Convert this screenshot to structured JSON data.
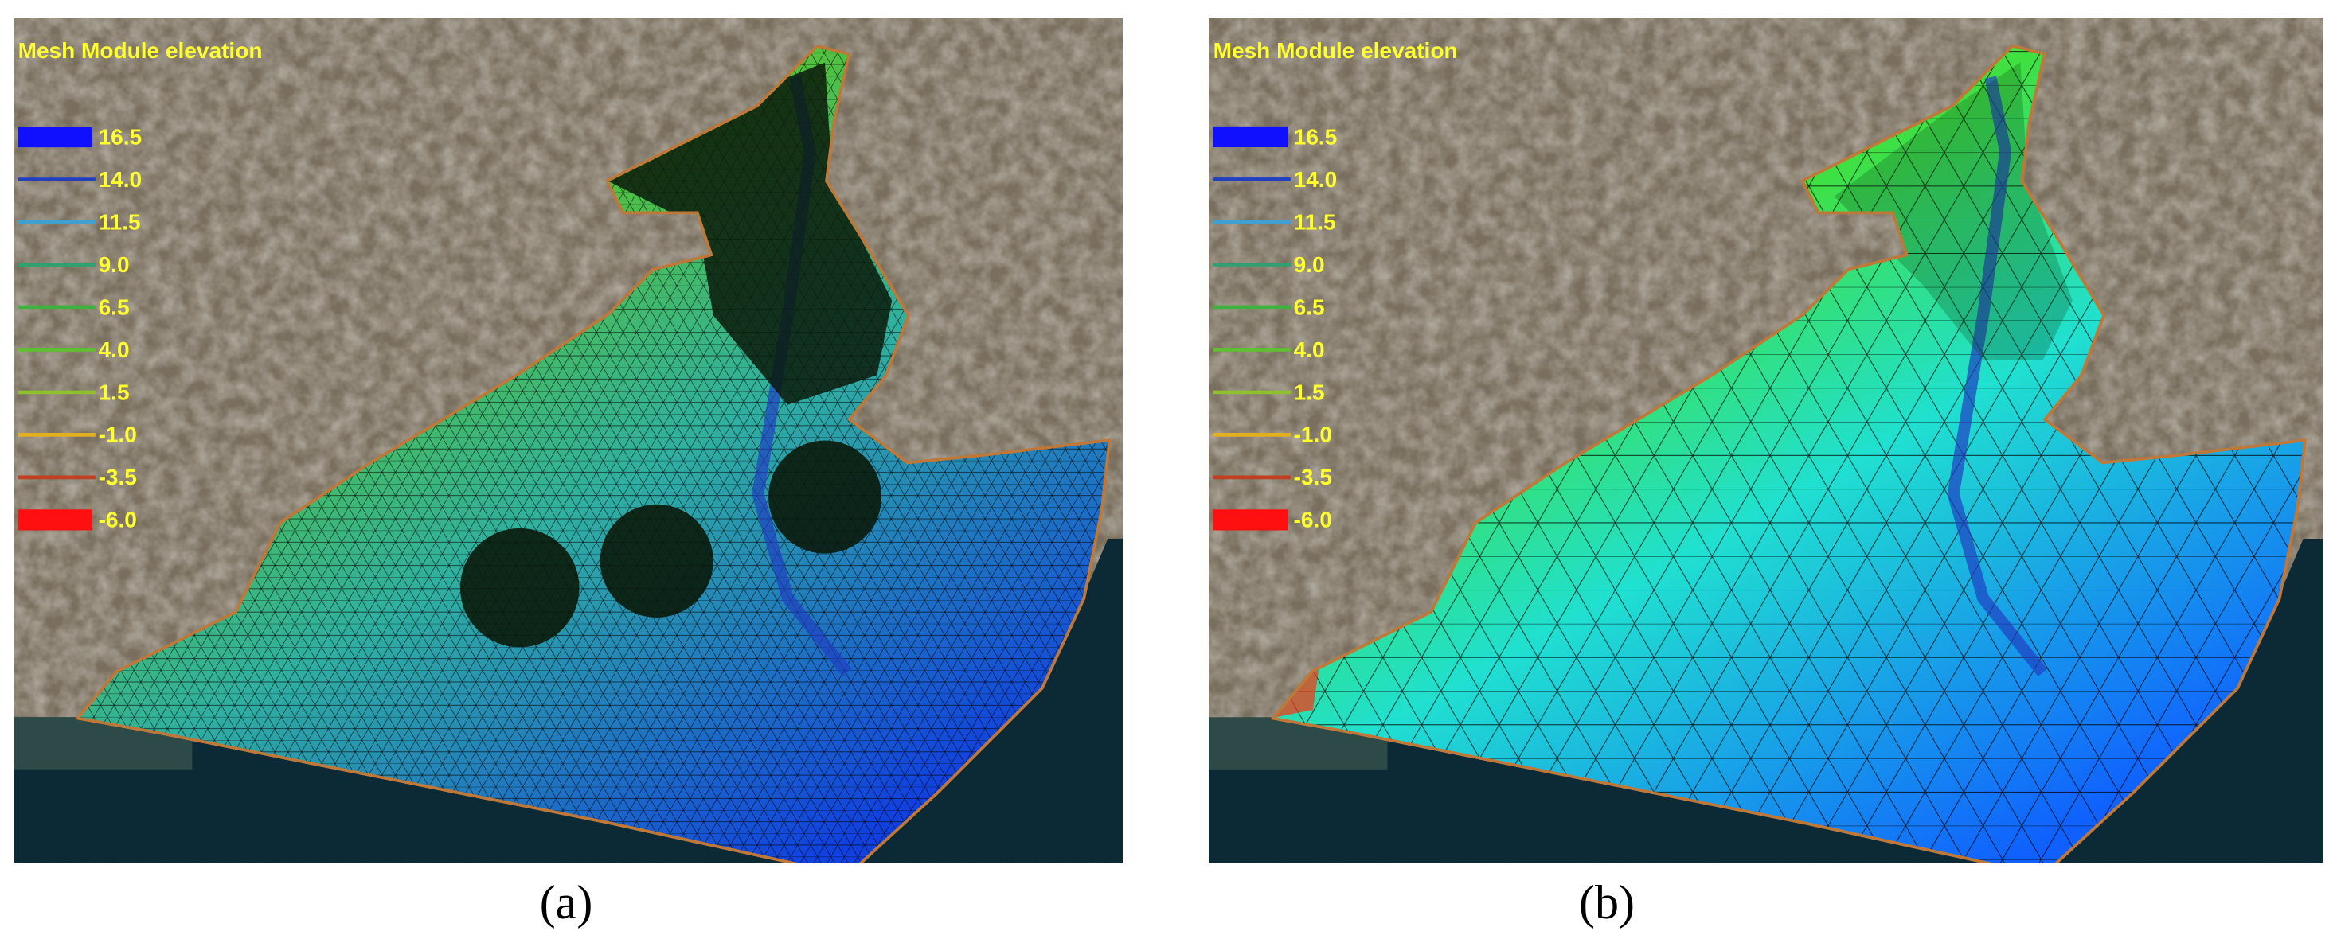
{
  "panels": [
    {
      "label": "(a)",
      "title": "Mesh Module elevation",
      "mesh": "fine",
      "legend": [
        {
          "label": "16.5",
          "color": "#1010ff",
          "style": "box"
        },
        {
          "label": "14.0",
          "color": "#2040c0",
          "style": "line"
        },
        {
          "label": "11.5",
          "color": "#40a0d0",
          "style": "line"
        },
        {
          "label": "9.0",
          "color": "#30a070",
          "style": "line"
        },
        {
          "label": "6.5",
          "color": "#40b040",
          "style": "line"
        },
        {
          "label": "4.0",
          "color": "#60c030",
          "style": "line"
        },
        {
          "label": "1.5",
          "color": "#90c030",
          "style": "line"
        },
        {
          "label": "-1.0",
          "color": "#e0b020",
          "style": "line"
        },
        {
          "label": "-3.5",
          "color": "#c04020",
          "style": "line"
        },
        {
          "label": "-6.0",
          "color": "#ff1010",
          "style": "box"
        }
      ]
    },
    {
      "label": "(b)",
      "title": "Mesh Module elevation",
      "mesh": "coarse",
      "legend": [
        {
          "label": "16.5",
          "color": "#1010ff",
          "style": "box"
        },
        {
          "label": "14.0",
          "color": "#2040c0",
          "style": "line"
        },
        {
          "label": "11.5",
          "color": "#40a0d0",
          "style": "line"
        },
        {
          "label": "9.0",
          "color": "#30a070",
          "style": "line"
        },
        {
          "label": "6.5",
          "color": "#40b040",
          "style": "line"
        },
        {
          "label": "4.0",
          "color": "#60c030",
          "style": "line"
        },
        {
          "label": "1.5",
          "color": "#90c030",
          "style": "line"
        },
        {
          "label": "-1.0",
          "color": "#e0b020",
          "style": "line"
        },
        {
          "label": "-3.5",
          "color": "#c04020",
          "style": "line"
        },
        {
          "label": "-6.0",
          "color": "#ff1010",
          "style": "box"
        }
      ]
    }
  ]
}
